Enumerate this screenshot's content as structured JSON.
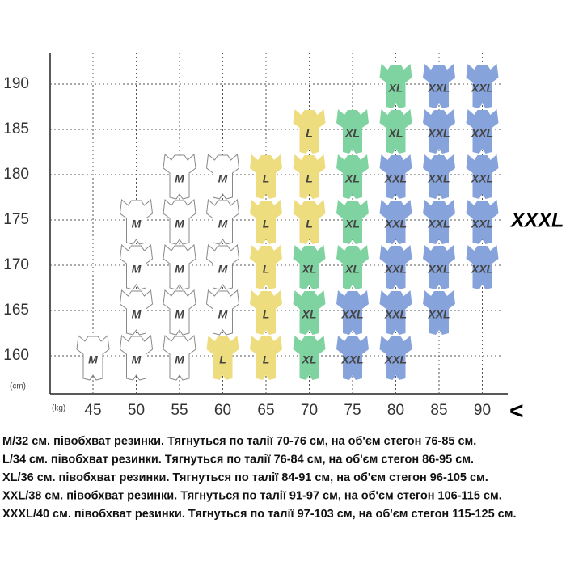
{
  "header": {
    "y_unit": "(cm)",
    "x_unit": "(kg)",
    "side_label": "XXXL",
    "side_arrow": "<"
  },
  "weights": [
    45,
    50,
    55,
    60,
    65,
    70,
    75,
    80,
    85,
    90
  ],
  "rows": [
    {
      "height": 190,
      "sizes": [
        null,
        null,
        null,
        null,
        null,
        null,
        null,
        "XL",
        "XXL",
        "XXL"
      ]
    },
    {
      "height": 185,
      "sizes": [
        null,
        null,
        null,
        null,
        null,
        "L",
        "XL",
        "XL",
        "XXL",
        "XXL"
      ]
    },
    {
      "height": 180,
      "sizes": [
        null,
        null,
        "M",
        "M",
        "L",
        "L",
        "XL",
        "XXL",
        "XXL",
        "XXL"
      ]
    },
    {
      "height": 175,
      "sizes": [
        null,
        "M",
        "M",
        "M",
        "L",
        "L",
        "XL",
        "XXL",
        "XXL",
        "XXL"
      ]
    },
    {
      "height": 170,
      "sizes": [
        null,
        "M",
        "M",
        "M",
        "L",
        "XL",
        "XL",
        "XXL",
        "XXL",
        "XXL"
      ]
    },
    {
      "height": 165,
      "sizes": [
        null,
        "M",
        "M",
        "M",
        "L",
        "XL",
        "XXL",
        "XXL",
        "XXL",
        null
      ]
    },
    {
      "height": 160,
      "sizes": [
        "M",
        "M",
        "M",
        "L",
        "L",
        "XL",
        "XXL",
        "XXL",
        null,
        null
      ]
    }
  ],
  "size_colors": {
    "M": "#ffffff",
    "L": "#eedd7e",
    "XL": "#7fd3a0",
    "XXL": "#87a3dc"
  },
  "notes": [
    "M/32 см. півобхват резинки. Тягнуться по талії 70-76 см, на об'єм стегон 76-85 см.",
    "L/34 см. півобхват резинки. Тягнуться по талії 76-84 см, на об'єм стегон 86-95 см.",
    "XL/36 см. півобхват резинки. Тягнуться по талії 84-91 см, на об'єм стегон 96-105 см.",
    "XXL/38 см. півобхват резинки. Тягнуться по талії 91-97 см, на об'єм стегон 106-115 см.",
    "XXXL/40 см. півобхват резинки. Тягнуться по талії 97-103 см, на об'єм стегон 115-125 см."
  ]
}
